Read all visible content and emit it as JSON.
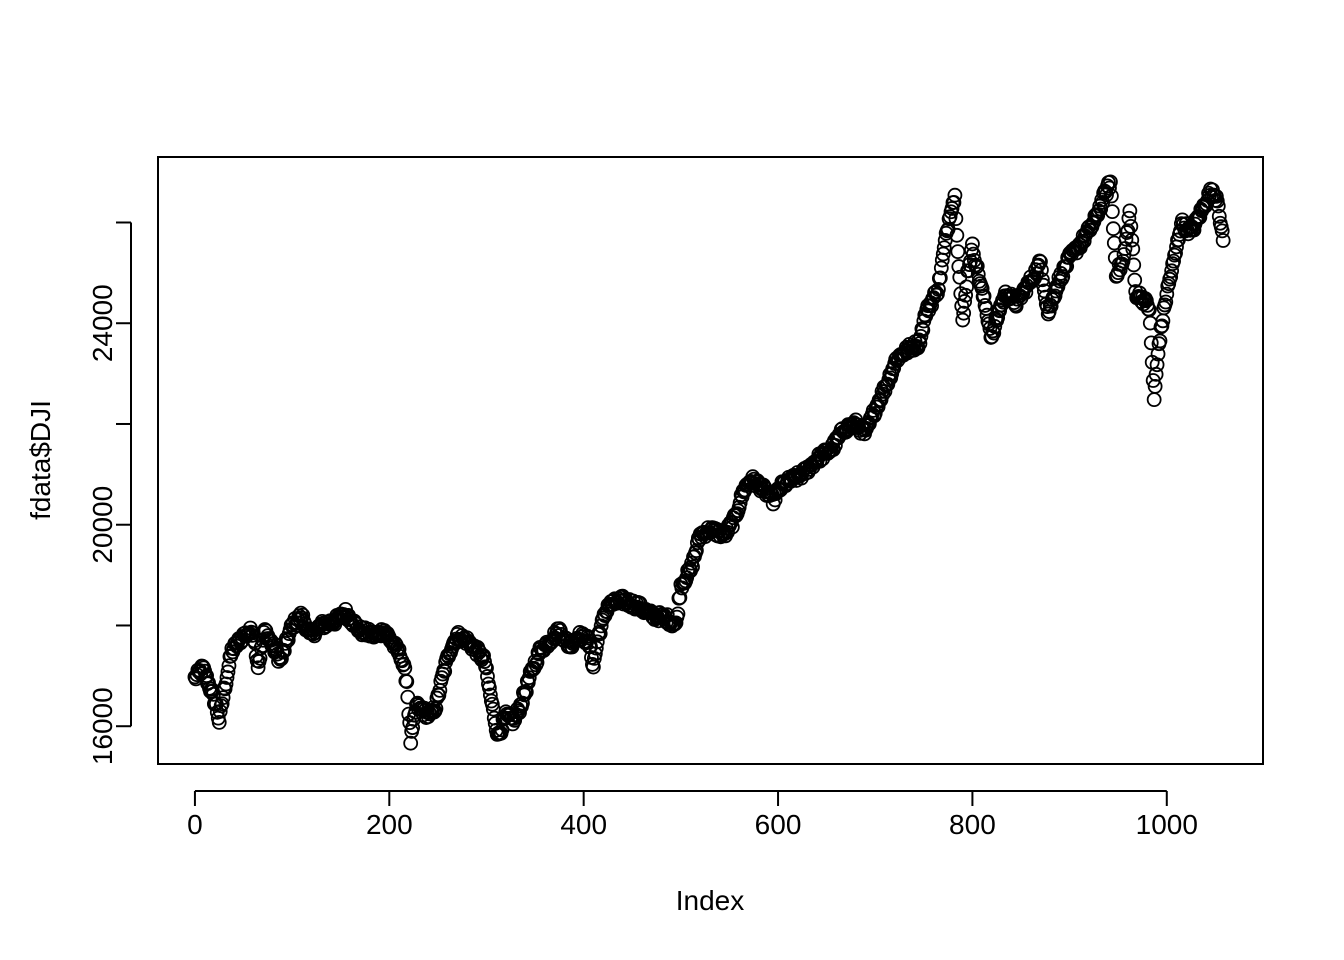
{
  "chart_data": {
    "type": "scatter",
    "title": "",
    "xlabel": "Index",
    "ylabel": "fdata$DJI",
    "xlim": [
      -38,
      1099
    ],
    "ylim": [
      15250,
      27300
    ],
    "x_ticks": [
      0,
      200,
      400,
      600,
      800,
      1000
    ],
    "y_ticks": [
      16000,
      18000,
      20000,
      22000,
      24000,
      26000
    ],
    "y_tick_labels": [
      "16000",
      "",
      "20000",
      "",
      "24000",
      ""
    ],
    "grid": false,
    "legend": "none",
    "marker": "open-circle",
    "point_count": 1059,
    "anchors": [
      [
        0,
        16950
      ],
      [
        8,
        17150
      ],
      [
        15,
        16800
      ],
      [
        22,
        16400
      ],
      [
        25,
        16100
      ],
      [
        30,
        16700
      ],
      [
        38,
        17500
      ],
      [
        50,
        17800
      ],
      [
        60,
        17900
      ],
      [
        65,
        17200
      ],
      [
        72,
        17900
      ],
      [
        80,
        17600
      ],
      [
        88,
        17300
      ],
      [
        100,
        18000
      ],
      [
        110,
        18200
      ],
      [
        118,
        17800
      ],
      [
        130,
        18000
      ],
      [
        145,
        18100
      ],
      [
        155,
        18250
      ],
      [
        170,
        17900
      ],
      [
        185,
        17800
      ],
      [
        195,
        17900
      ],
      [
        205,
        17600
      ],
      [
        212,
        17400
      ],
      [
        218,
        16900
      ],
      [
        222,
        15700
      ],
      [
        228,
        16400
      ],
      [
        235,
        16300
      ],
      [
        242,
        16200
      ],
      [
        248,
        16400
      ],
      [
        255,
        17000
      ],
      [
        262,
        17500
      ],
      [
        270,
        17800
      ],
      [
        280,
        17700
      ],
      [
        290,
        17500
      ],
      [
        298,
        17300
      ],
      [
        305,
        16500
      ],
      [
        312,
        15800
      ],
      [
        320,
        16200
      ],
      [
        328,
        16100
      ],
      [
        335,
        16400
      ],
      [
        345,
        17000
      ],
      [
        355,
        17500
      ],
      [
        365,
        17700
      ],
      [
        375,
        17900
      ],
      [
        385,
        17600
      ],
      [
        395,
        17800
      ],
      [
        405,
        17700
      ],
      [
        410,
        17200
      ],
      [
        415,
        17800
      ],
      [
        425,
        18400
      ],
      [
        440,
        18500
      ],
      [
        455,
        18400
      ],
      [
        470,
        18200
      ],
      [
        485,
        18150
      ],
      [
        495,
        18000
      ],
      [
        500,
        18800
      ],
      [
        510,
        19100
      ],
      [
        520,
        19800
      ],
      [
        530,
        19900
      ],
      [
        545,
        19800
      ],
      [
        555,
        20100
      ],
      [
        565,
        20700
      ],
      [
        572,
        20900
      ],
      [
        580,
        20800
      ],
      [
        595,
        20500
      ],
      [
        605,
        20800
      ],
      [
        615,
        20900
      ],
      [
        625,
        21000
      ],
      [
        640,
        21300
      ],
      [
        655,
        21500
      ],
      [
        668,
        21900
      ],
      [
        680,
        22000
      ],
      [
        690,
        21800
      ],
      [
        700,
        22300
      ],
      [
        712,
        22800
      ],
      [
        722,
        23300
      ],
      [
        735,
        23500
      ],
      [
        745,
        23600
      ],
      [
        752,
        24200
      ],
      [
        765,
        24700
      ],
      [
        772,
        25600
      ],
      [
        778,
        26300
      ],
      [
        782,
        26500
      ],
      [
        785,
        25500
      ],
      [
        790,
        24000
      ],
      [
        795,
        25000
      ],
      [
        800,
        25500
      ],
      [
        808,
        24800
      ],
      [
        815,
        24200
      ],
      [
        820,
        23700
      ],
      [
        828,
        24300
      ],
      [
        835,
        24600
      ],
      [
        845,
        24400
      ],
      [
        855,
        24700
      ],
      [
        862,
        24900
      ],
      [
        870,
        25200
      ],
      [
        878,
        24200
      ],
      [
        888,
        24800
      ],
      [
        900,
        25300
      ],
      [
        912,
        25600
      ],
      [
        925,
        26000
      ],
      [
        935,
        26500
      ],
      [
        942,
        26800
      ],
      [
        948,
        25000
      ],
      [
        955,
        25200
      ],
      [
        962,
        26200
      ],
      [
        968,
        24600
      ],
      [
        975,
        24500
      ],
      [
        982,
        24300
      ],
      [
        987,
        22500
      ],
      [
        992,
        23600
      ],
      [
        1000,
        24600
      ],
      [
        1008,
        25300
      ],
      [
        1015,
        26000
      ],
      [
        1025,
        25800
      ],
      [
        1035,
        26200
      ],
      [
        1045,
        26600
      ],
      [
        1052,
        26500
      ],
      [
        1058,
        25600
      ]
    ]
  }
}
